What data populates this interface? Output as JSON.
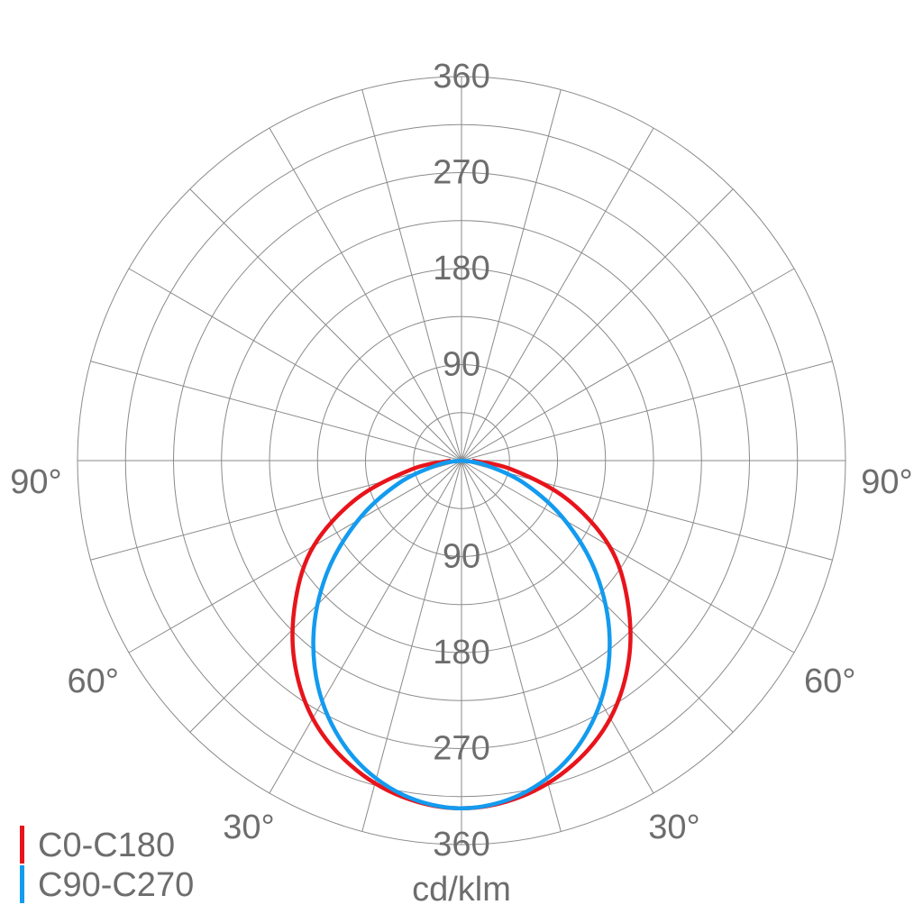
{
  "chart_data": {
    "type": "polar",
    "x": [
      -90,
      -80,
      -70,
      -60,
      -50,
      -40,
      -30,
      -20,
      -10,
      0,
      10,
      20,
      30,
      40,
      50,
      60,
      70,
      80,
      90
    ],
    "series": [
      {
        "name": "C0-C180",
        "color": "#e8141b",
        "values": [
          10,
          48,
          105,
          160,
          203,
          244,
          279,
          304,
          320,
          326,
          320,
          304,
          279,
          244,
          203,
          160,
          105,
          48,
          10
        ]
      },
      {
        "name": "C90-C270",
        "color": "#139bef",
        "values": [
          0,
          22,
          63,
          112,
          165,
          216,
          261,
          296,
          318,
          326,
          318,
          296,
          261,
          216,
          165,
          112,
          63,
          22,
          0
        ]
      }
    ],
    "rlim": [
      0,
      360
    ],
    "rticks": [
      90,
      180,
      270,
      360
    ],
    "thetalim": [
      0,
      180
    ],
    "thetaticks": [
      {
        "value": 30,
        "label": "30°"
      },
      {
        "value": 60,
        "label": "60°"
      },
      {
        "value": 90,
        "label": "90°"
      }
    ],
    "unit_label": "cd/klm",
    "legend": "bottom-left",
    "grid": true
  }
}
